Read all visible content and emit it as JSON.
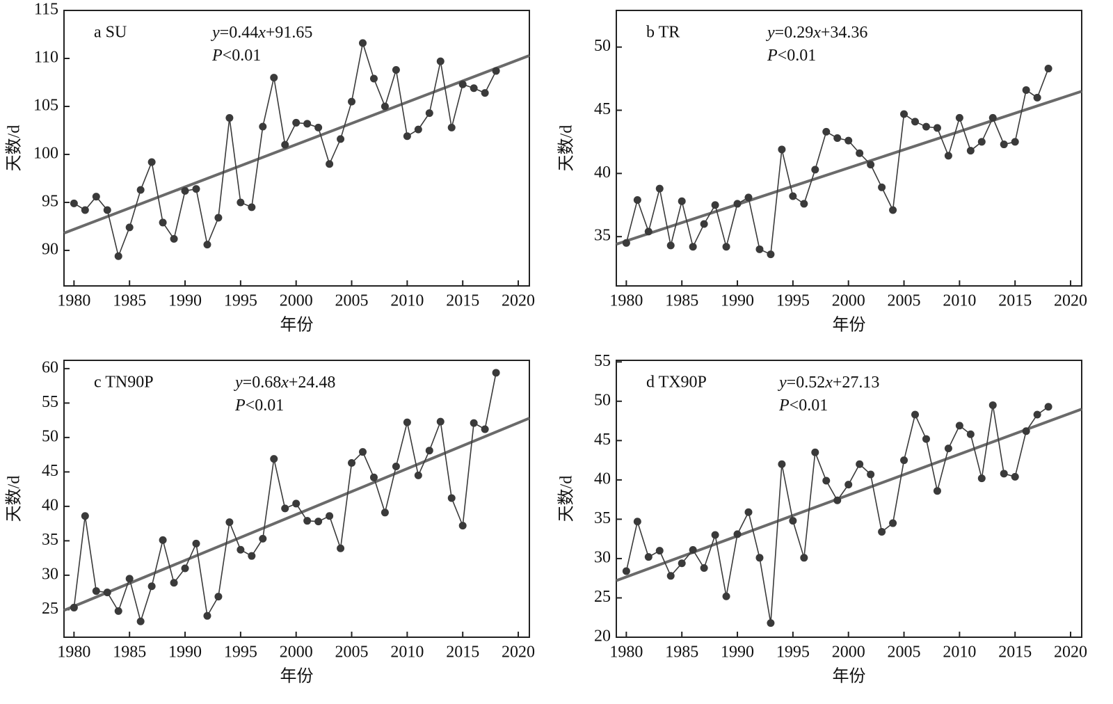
{
  "chart_data": [
    {
      "type": "line",
      "panel_label": "a SU",
      "equation": [
        "y",
        "=0.44",
        "x",
        "+91.65"
      ],
      "p_value": [
        "P",
        "<0.01"
      ],
      "x_label": "年份",
      "y_label": "天数/d",
      "color": "#3a3a3a",
      "trend_color": "#6a6a6a",
      "xlim": [
        1979.1,
        2021
      ],
      "xticks": [
        1980,
        1985,
        1990,
        1995,
        2000,
        2005,
        2010,
        2015,
        2020
      ],
      "ylim": [
        86.3,
        115
      ],
      "yticks": [
        90,
        95,
        100,
        105,
        110,
        115
      ],
      "x": [
        1980,
        1981,
        1982,
        1983,
        1984,
        1985,
        1986,
        1987,
        1988,
        1989,
        1990,
        1991,
        1992,
        1993,
        1994,
        1995,
        1996,
        1997,
        1998,
        1999,
        2000,
        2001,
        2002,
        2003,
        2004,
        2005,
        2006,
        2007,
        2008,
        2009,
        2010,
        2011,
        2012,
        2013,
        2014,
        2015,
        2016,
        2017,
        2018
      ],
      "values": [
        94.9,
        94.2,
        95.6,
        94.2,
        89.4,
        92.4,
        96.3,
        99.2,
        92.9,
        91.2,
        96.2,
        96.4,
        90.6,
        93.4,
        103.8,
        95.0,
        94.5,
        102.9,
        108.0,
        101.0,
        103.3,
        103.2,
        102.8,
        99.0,
        101.6,
        105.5,
        111.6,
        107.9,
        105.0,
        108.8,
        101.9,
        102.6,
        104.3,
        109.7,
        102.8,
        107.3,
        106.9,
        106.4,
        108.7
      ],
      "trend": {
        "x": [
          1979.1,
          2021
        ],
        "values": [
          91.8,
          110.3
        ]
      }
    },
    {
      "type": "line",
      "panel_label": "b TR",
      "equation": [
        "y",
        "=0.29",
        "x",
        "+34.36"
      ],
      "p_value": [
        "P",
        "<0.01"
      ],
      "x_label": "年份",
      "y_label": "天数/d",
      "color": "#3a3a3a",
      "trend_color": "#6a6a6a",
      "xlim": [
        1979.1,
        2021
      ],
      "xticks": [
        1980,
        1985,
        1990,
        1995,
        2000,
        2005,
        2010,
        2015,
        2020
      ],
      "ylim": [
        31.1,
        52.9
      ],
      "yticks": [
        35,
        40,
        45,
        50
      ],
      "x": [
        1980,
        1981,
        1982,
        1983,
        1984,
        1985,
        1986,
        1987,
        1988,
        1989,
        1990,
        1991,
        1992,
        1993,
        1994,
        1995,
        1996,
        1997,
        1998,
        1999,
        2000,
        2001,
        2002,
        2003,
        2004,
        2005,
        2006,
        2007,
        2008,
        2009,
        2010,
        2011,
        2012,
        2013,
        2014,
        2015,
        2016,
        2017,
        2018
      ],
      "values": [
        34.5,
        37.9,
        35.4,
        38.8,
        34.3,
        37.8,
        34.2,
        36.0,
        37.5,
        34.2,
        37.6,
        38.1,
        34.0,
        33.6,
        41.9,
        38.2,
        37.6,
        40.3,
        43.3,
        42.8,
        42.6,
        41.6,
        40.7,
        38.9,
        37.1,
        44.7,
        44.1,
        43.7,
        43.6,
        41.4,
        44.4,
        41.8,
        42.5,
        44.4,
        42.3,
        42.5,
        46.6,
        46.0,
        48.3
      ],
      "trend": {
        "x": [
          1979.1,
          2021
        ],
        "values": [
          34.4,
          46.5
        ]
      }
    },
    {
      "type": "line",
      "panel_label": "c TN90P",
      "equation": [
        "y",
        "=0.68",
        "x",
        "+24.48"
      ],
      "p_value": [
        "P",
        "<0.01"
      ],
      "x_label": "年份",
      "y_label": "天数/d",
      "color": "#3a3a3a",
      "trend_color": "#6a6a6a",
      "xlim": [
        1979.1,
        2021
      ],
      "xticks": [
        1980,
        1985,
        1990,
        1995,
        2000,
        2005,
        2010,
        2015,
        2020
      ],
      "ylim": [
        21.0,
        61.2
      ],
      "yticks": [
        25,
        30,
        35,
        40,
        45,
        50,
        55,
        60
      ],
      "x": [
        1980,
        1981,
        1982,
        1983,
        1984,
        1985,
        1986,
        1987,
        1988,
        1989,
        1990,
        1991,
        1992,
        1993,
        1994,
        1995,
        1996,
        1997,
        1998,
        1999,
        2000,
        2001,
        2002,
        2003,
        2004,
        2005,
        2006,
        2007,
        2008,
        2009,
        2010,
        2011,
        2012,
        2013,
        2014,
        2015,
        2016,
        2017,
        2018
      ],
      "values": [
        25.3,
        38.6,
        27.7,
        27.5,
        24.8,
        29.5,
        23.3,
        28.4,
        35.1,
        28.9,
        31.0,
        34.6,
        24.1,
        26.9,
        37.7,
        33.7,
        32.8,
        35.3,
        46.9,
        39.7,
        40.4,
        37.9,
        37.8,
        38.6,
        33.9,
        46.3,
        47.9,
        44.2,
        39.1,
        45.8,
        52.2,
        44.5,
        48.1,
        52.3,
        41.2,
        37.2,
        52.1,
        51.2,
        59.4
      ],
      "trend": {
        "x": [
          1979.1,
          2021
        ],
        "values": [
          24.9,
          52.8
        ]
      }
    },
    {
      "type": "line",
      "panel_label": "d TX90P",
      "equation": [
        "y",
        "=0.52",
        "x",
        "+27.13"
      ],
      "p_value": [
        "P",
        "<0.01"
      ],
      "x_label": "年份",
      "y_label": "天数/d",
      "color": "#3a3a3a",
      "trend_color": "#6a6a6a",
      "xlim": [
        1979.1,
        2021
      ],
      "xticks": [
        1980,
        1985,
        1990,
        1995,
        2000,
        2005,
        2010,
        2015,
        2020
      ],
      "ylim": [
        20,
        55.2
      ],
      "yticks": [
        20,
        25,
        30,
        35,
        40,
        45,
        50,
        55
      ],
      "x": [
        1980,
        1981,
        1982,
        1983,
        1984,
        1985,
        1986,
        1987,
        1988,
        1989,
        1990,
        1991,
        1992,
        1993,
        1994,
        1995,
        1996,
        1997,
        1998,
        1999,
        2000,
        2001,
        2002,
        2003,
        2004,
        2005,
        2006,
        2007,
        2008,
        2009,
        2010,
        2011,
        2012,
        2013,
        2014,
        2015,
        2016,
        2017,
        2018
      ],
      "values": [
        28.4,
        34.7,
        30.2,
        31.0,
        27.8,
        29.4,
        31.1,
        28.8,
        33.0,
        25.2,
        33.1,
        35.9,
        30.1,
        21.8,
        42.0,
        34.8,
        30.1,
        43.5,
        39.9,
        37.4,
        39.4,
        42.0,
        40.7,
        33.4,
        34.5,
        42.5,
        48.3,
        45.2,
        38.6,
        44.0,
        46.9,
        45.8,
        40.2,
        49.5,
        40.8,
        40.4,
        46.2,
        48.3,
        49.3
      ],
      "trend": {
        "x": [
          1979.1,
          2021
        ],
        "values": [
          27.2,
          49.0
        ]
      }
    }
  ]
}
